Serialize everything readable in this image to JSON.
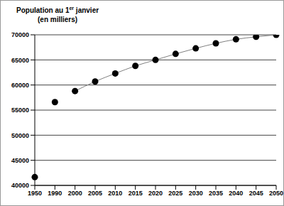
{
  "chart_data": {
    "type": "scatter",
    "title": [
      "Population au 1er janvier",
      "(en milliers)"
    ],
    "categories": [
      "1950",
      "1990",
      "2000",
      "2005",
      "2010",
      "2015",
      "2020",
      "2025",
      "2030",
      "2035",
      "2040",
      "2045",
      "2050"
    ],
    "series": [
      {
        "type": "scatter",
        "color": "#000000",
        "marker": "circle",
        "values": [
          41650,
          56600,
          58800,
          60700,
          62300,
          63800,
          65000,
          66200,
          67300,
          68300,
          69100,
          69600,
          70000
        ]
      },
      {
        "type": "line",
        "color": "#808080",
        "line_style": "solid",
        "values": [
          null,
          null,
          58800,
          60700,
          62300,
          63800,
          65000,
          66200,
          67300,
          68300,
          69100,
          69600,
          70000
        ]
      }
    ],
    "ylim": [
      40000,
      70000
    ],
    "yticks": [
      40000,
      45000,
      50000,
      55000,
      60000,
      65000,
      70000
    ],
    "grid": true
  }
}
